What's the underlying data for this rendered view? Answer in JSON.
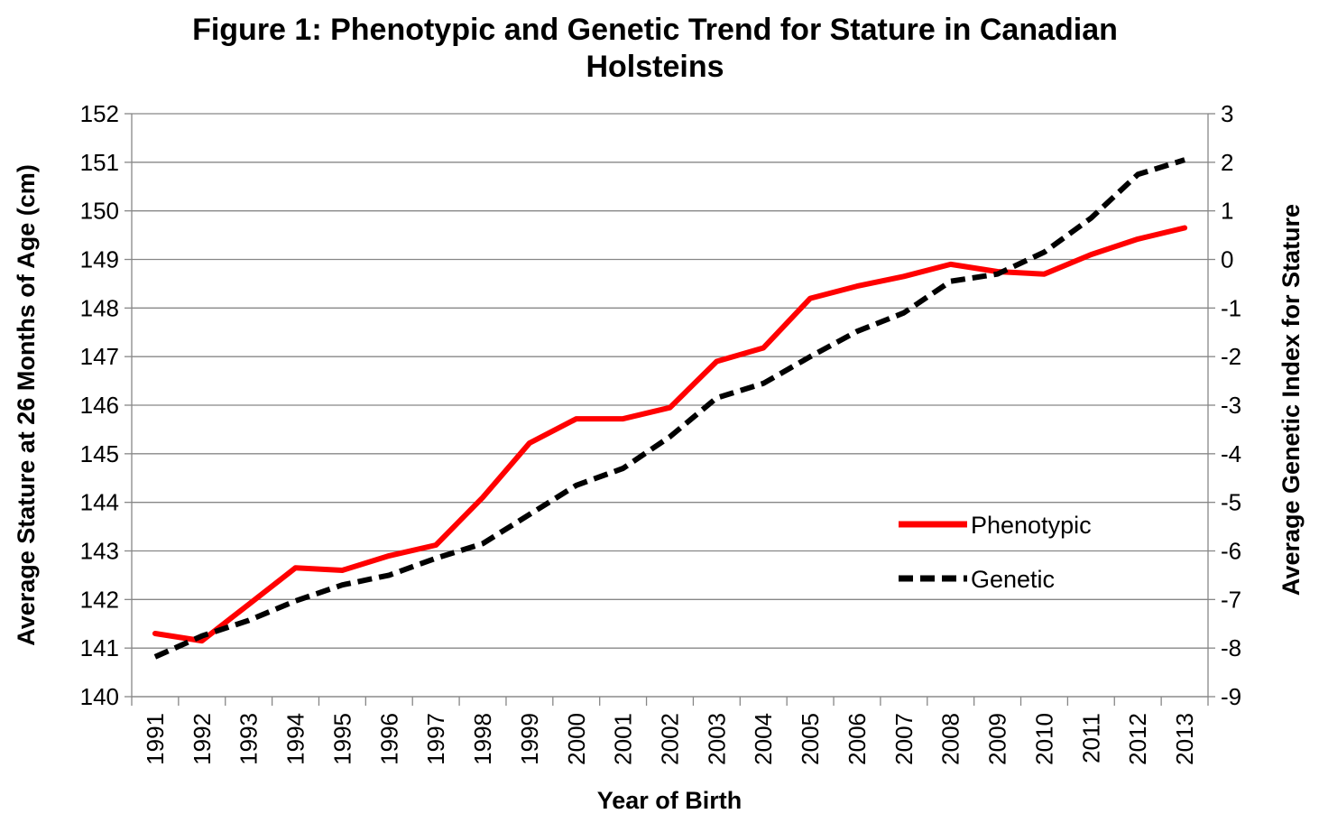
{
  "chart_data": {
    "type": "line",
    "title": "Figure 1: Phenotypic  and Genetic Trend for Stature in Canadian Holsteins",
    "title_lines": [
      "Figure 1: Phenotypic  and Genetic Trend for Stature in Canadian",
      "Holsteins"
    ],
    "xlabel": "Year of Birth",
    "ylabel": "Average Stature at 26 Months of Age (cm)",
    "ylabel_right": "Average Genetic Index for Stature",
    "categories": [
      "1991",
      "1992",
      "1993",
      "1994",
      "1995",
      "1996",
      "1997",
      "1998",
      "1999",
      "2000",
      "2001",
      "2002",
      "2003",
      "2004",
      "2005",
      "2006",
      "2007",
      "2008",
      "2009",
      "2010",
      "2011",
      "2012",
      "2013"
    ],
    "ylim": [
      140,
      152
    ],
    "yticks": [
      "140",
      "141",
      "142",
      "143",
      "144",
      "145",
      "146",
      "147",
      "148",
      "149",
      "150",
      "151",
      "152"
    ],
    "ylim_right": [
      -9,
      3
    ],
    "yticks_right": [
      "-9",
      "-8",
      "-7",
      "-6",
      "-5",
      "-4",
      "-3",
      "-2",
      "-1",
      "0",
      "1",
      "2",
      "3"
    ],
    "grid": true,
    "legend_position": "center-right",
    "series": [
      {
        "name": "Phenotypic",
        "axis": "left",
        "color": "#ff0000",
        "style": "solid",
        "values": [
          141.3,
          141.15,
          141.9,
          142.65,
          142.6,
          142.9,
          143.12,
          144.1,
          145.22,
          145.72,
          145.72,
          145.95,
          146.9,
          147.18,
          148.2,
          148.45,
          148.65,
          148.9,
          148.75,
          148.7,
          149.1,
          149.42,
          149.65
        ]
      },
      {
        "name": "Genetic",
        "axis": "right",
        "color": "#000000",
        "style": "dashed",
        "values": [
          -8.18,
          -7.75,
          -7.43,
          -7.03,
          -6.7,
          -6.5,
          -6.15,
          -5.85,
          -5.25,
          -4.65,
          -4.3,
          -3.65,
          -2.85,
          -2.55,
          -2.0,
          -1.48,
          -1.1,
          -0.45,
          -0.3,
          0.15,
          0.85,
          1.75,
          2.05
        ]
      }
    ]
  }
}
